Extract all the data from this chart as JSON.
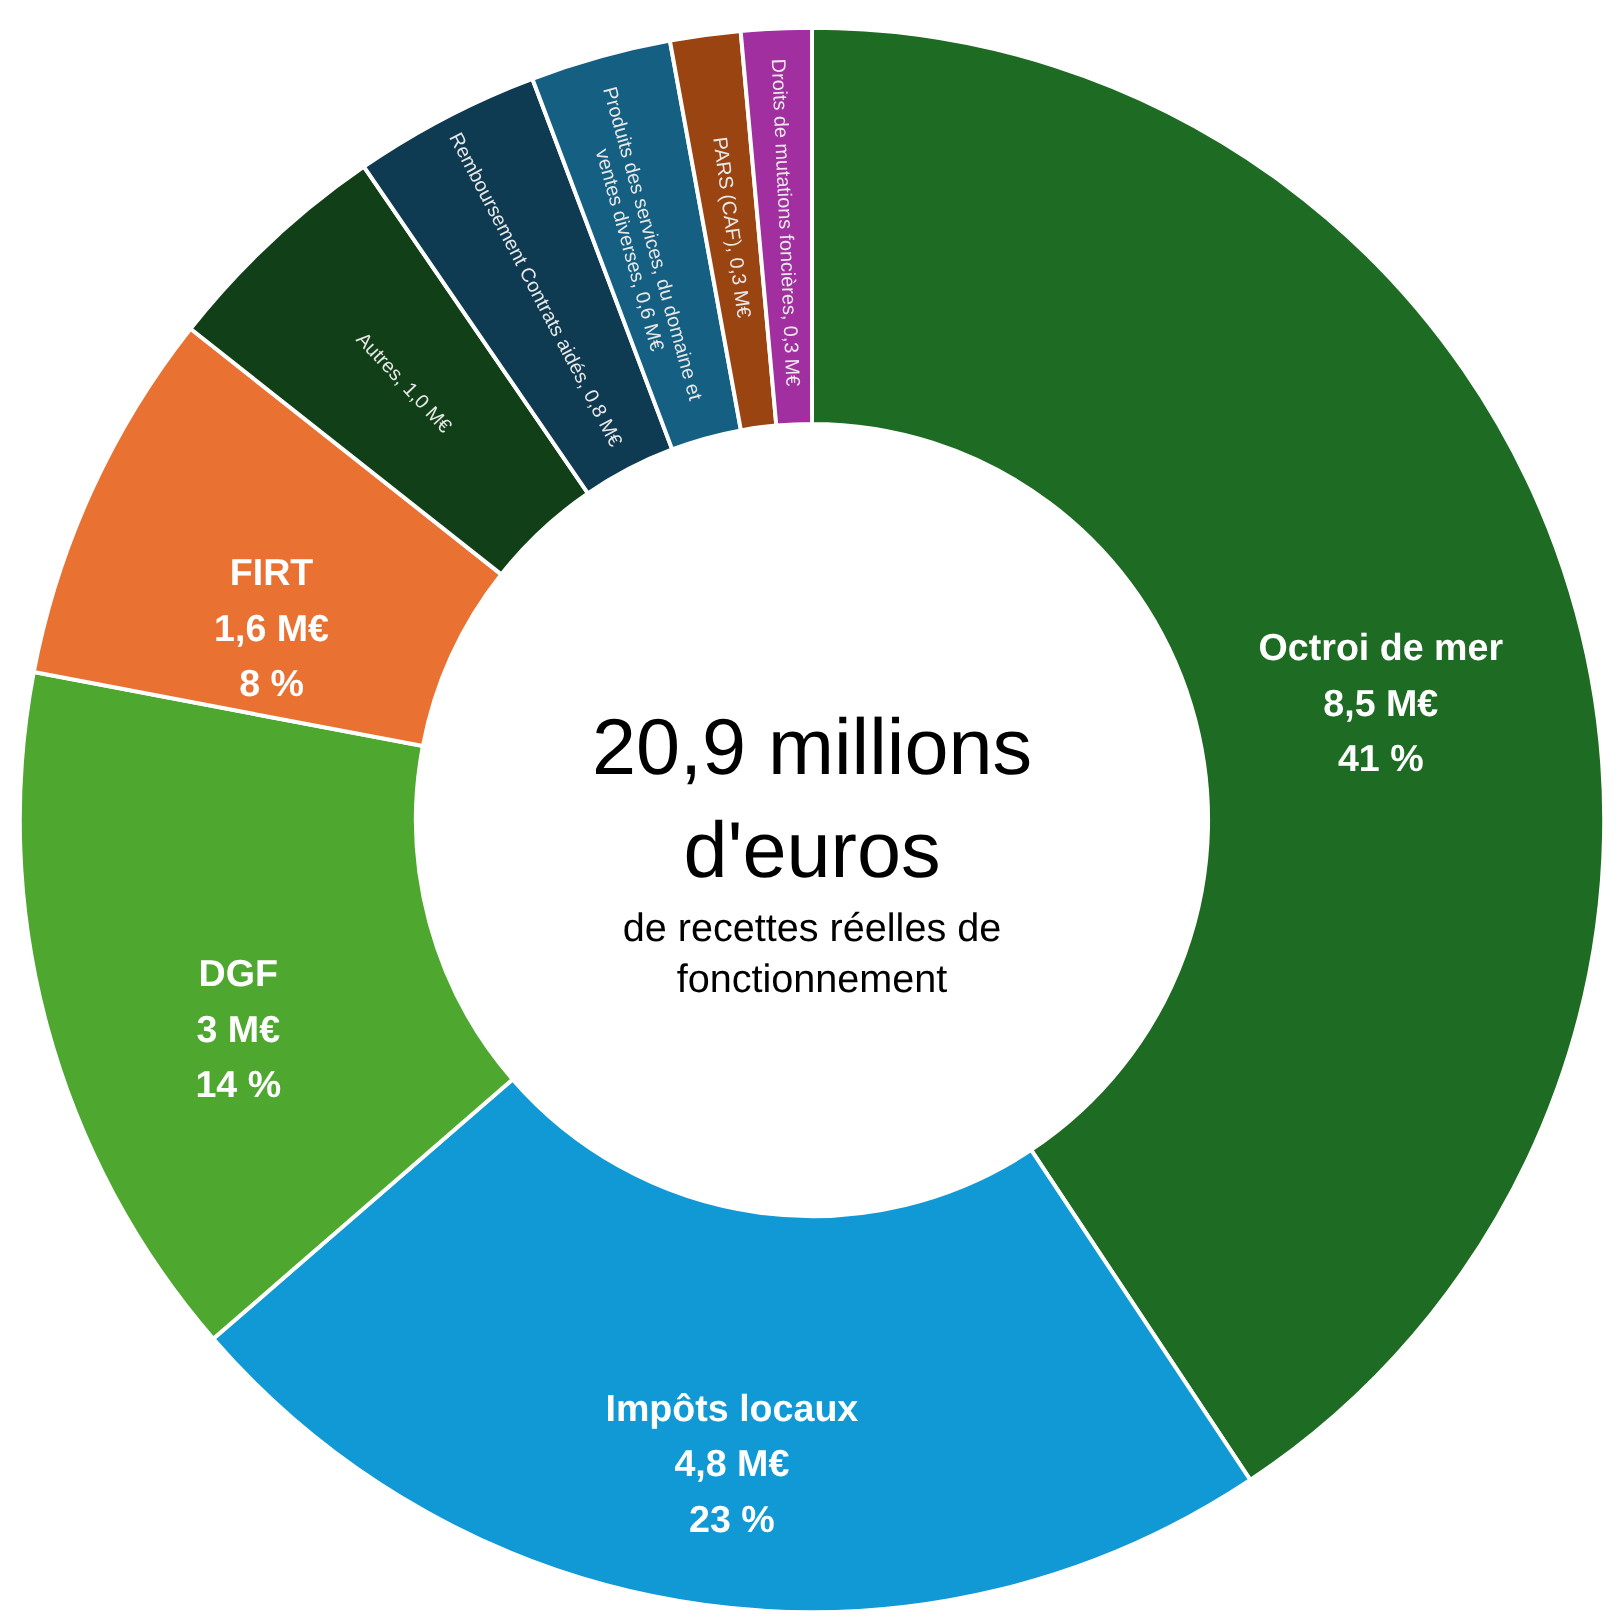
{
  "chart_data": {
    "type": "donut",
    "categories": [
      "Octroi de mer",
      "Impôts locaux",
      "DGF",
      "FIRT",
      "Autres",
      "Remboursement Contrats aidés",
      "Produits des services, du domaine et\nventes diverses",
      "PARS (CAF)",
      "Droits de mutations foncières"
    ],
    "values": [
      8.5,
      4.8,
      3,
      1.6,
      1.0,
      0.8,
      0.6,
      0.3,
      0.3
    ],
    "value_labels": [
      "8,5 M€\n41 %",
      "4,8 M€\n23 %",
      "3 M€\n14 %",
      "1,6 M€\n8 %",
      "1,0 M€",
      "0,8 M€",
      "0,6 M€",
      "0,3 M€",
      "0,3 M€"
    ],
    "colors": [
      "#1e6b23",
      "#1199d6",
      "#4ea72e",
      "#e97132",
      "#113f17",
      "#0e3a52",
      "#155f82",
      "#9a4412",
      "#a12fa0"
    ],
    "annotations": [
      "20,9 millions\nd'euros",
      "de recettes réelles de\nfonctionnement"
    ],
    "legend": false
  }
}
